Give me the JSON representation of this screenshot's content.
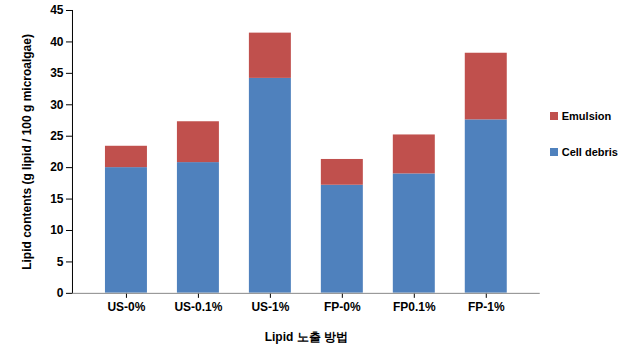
{
  "chart_data": {
    "type": "bar",
    "stacked": true,
    "x_label": "Lipid 노출 방법",
    "y_label": "Lipid contents (g lipid / 100 g microalgae)",
    "categories": [
      "US-0%",
      "US-0.1%",
      "US-1%",
      "FP-0%",
      "FP0.1%",
      "FP-1%"
    ],
    "series": [
      {
        "name": "Cell debris",
        "color": "#4f81bd",
        "values": [
          20.0,
          20.8,
          34.2,
          17.2,
          19.0,
          27.6
        ]
      },
      {
        "name": "Emulsion",
        "color": "#c0504d",
        "values": [
          3.4,
          6.5,
          7.2,
          4.1,
          6.2,
          10.6
        ]
      }
    ],
    "ylim": [
      0,
      45
    ],
    "yticks": [
      0,
      5,
      10,
      15,
      20,
      25,
      30,
      35,
      40,
      45
    ],
    "grid": false,
    "legend": "right"
  }
}
